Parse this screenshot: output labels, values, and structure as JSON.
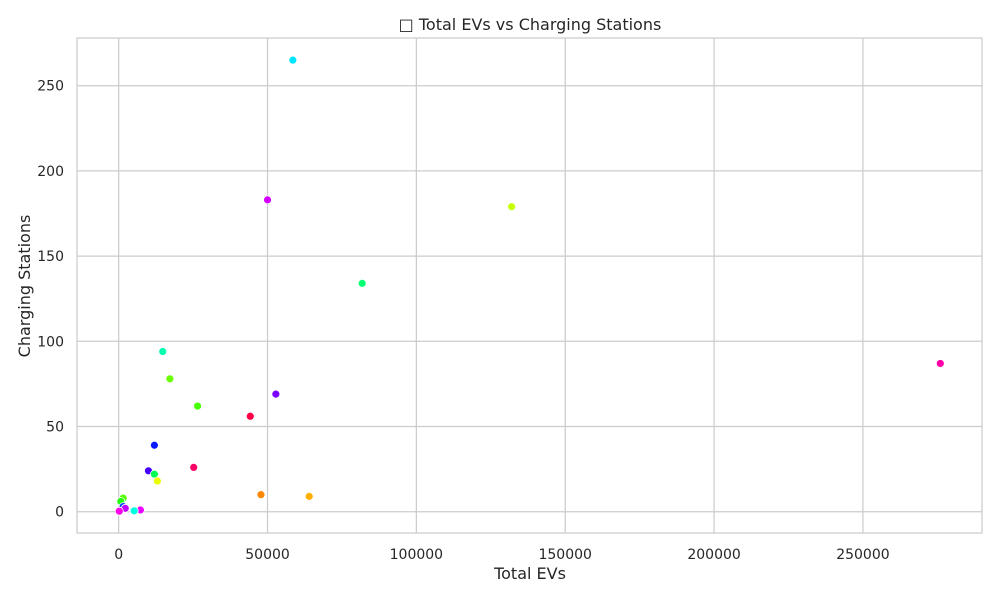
{
  "chart_data": {
    "type": "scatter",
    "title": "□ Total EVs vs Charging Stations",
    "xlabel": "Total EVs",
    "ylabel": "Charging Stations",
    "xlim": [
      -14000,
      290000
    ],
    "ylim": [
      -12.5,
      278
    ],
    "x_ticks": [
      0,
      50000,
      100000,
      150000,
      200000,
      250000
    ],
    "y_ticks": [
      0,
      50,
      100,
      150,
      200,
      250
    ],
    "grid": true,
    "points": [
      {
        "x": 58500,
        "y": 265,
        "color": "#00e5ff"
      },
      {
        "x": 50000,
        "y": 183,
        "color": "#d400ff"
      },
      {
        "x": 132000,
        "y": 179,
        "color": "#c8ff00"
      },
      {
        "x": 81800,
        "y": 134,
        "color": "#00ff73"
      },
      {
        "x": 14800,
        "y": 94,
        "color": "#00ffb0"
      },
      {
        "x": 276000,
        "y": 87,
        "color": "#ff00a8"
      },
      {
        "x": 17200,
        "y": 78,
        "color": "#6aff00"
      },
      {
        "x": 52800,
        "y": 69,
        "color": "#7a00ff"
      },
      {
        "x": 26500,
        "y": 62,
        "color": "#46ff00"
      },
      {
        "x": 44200,
        "y": 56,
        "color": "#ff0044"
      },
      {
        "x": 12000,
        "y": 39,
        "color": "#0a1aff"
      },
      {
        "x": 25200,
        "y": 26,
        "color": "#ff0066"
      },
      {
        "x": 10000,
        "y": 24,
        "color": "#4400ff"
      },
      {
        "x": 12000,
        "y": 22,
        "color": "#00ff55"
      },
      {
        "x": 13000,
        "y": 18,
        "color": "#eaff00"
      },
      {
        "x": 47800,
        "y": 10,
        "color": "#ff8800"
      },
      {
        "x": 64000,
        "y": 9,
        "color": "#ffb000"
      },
      {
        "x": 1500,
        "y": 8,
        "color": "#58ff00"
      },
      {
        "x": 700,
        "y": 6,
        "color": "#22ff11"
      },
      {
        "x": 1500,
        "y": 3,
        "color": "#0044ff"
      },
      {
        "x": 2200,
        "y": 2,
        "color": "#c000ff"
      },
      {
        "x": 7300,
        "y": 1,
        "color": "#ee00ff"
      },
      {
        "x": 5200,
        "y": 0.5,
        "color": "#00ffe0"
      },
      {
        "x": 200,
        "y": 0.3,
        "color": "#ff00ee"
      }
    ]
  }
}
